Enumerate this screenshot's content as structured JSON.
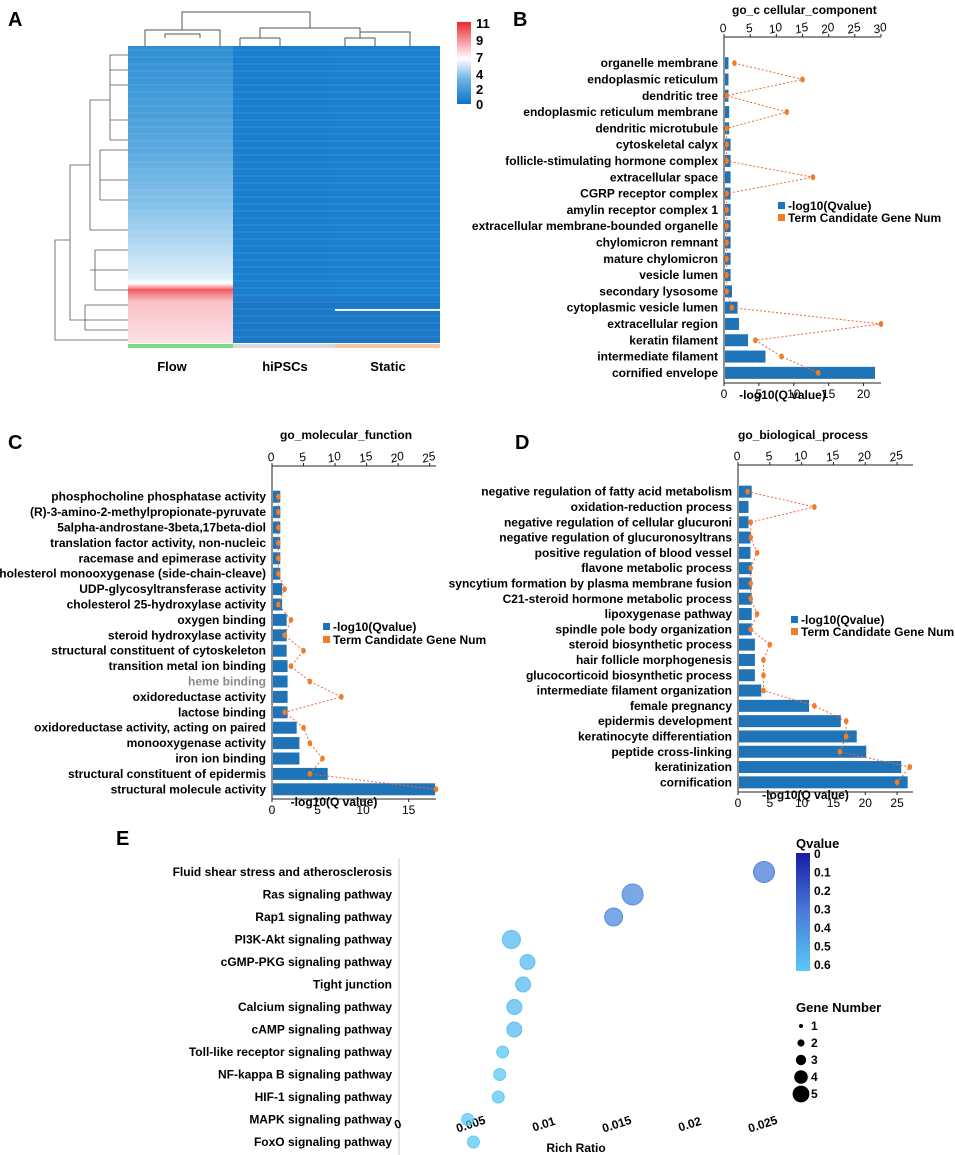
{
  "panels": {
    "a": {
      "label": "A",
      "groups": [
        "Flow",
        "hiPSCs",
        "Static"
      ],
      "group_colors": [
        "#7ad98a",
        "#d9d9d9",
        "#f5c7a3"
      ],
      "scale_ticks": [
        "11",
        "9",
        "7",
        "4",
        "2",
        "0"
      ]
    },
    "b": {
      "label": "B"
    },
    "c": {
      "label": "C"
    },
    "d": {
      "label": "D"
    },
    "e": {
      "label": "E"
    }
  },
  "colors": {
    "bar": "#1f73b7",
    "dot": "#f07d28",
    "line": "#f0643c"
  },
  "legend": {
    "bar_label": "-log10(Qvalue)",
    "dot_label": "Term Candidate Gene Num"
  },
  "chart_data": [
    {
      "id": "b",
      "type": "bar",
      "title": "go_c cellular_component",
      "xlabel": "-log10(Q value)",
      "bottom_ticks": [
        0,
        5,
        10,
        15,
        20
      ],
      "top_ticks": [
        0,
        5,
        10,
        15,
        20,
        25,
        30
      ],
      "bottom_max": 22.5,
      "top_max": 30,
      "categories": [
        "organelle membrane",
        "endoplasmic reticulum",
        "dendritic tree",
        "endoplasmic reticulum membrane",
        "dendritic microtubule",
        "cytoskeletal calyx",
        "follicle-stimulating hormone complex",
        "extracellular space",
        "CGRP receptor complex",
        "amylin receptor complex 1",
        "extracellular membrane-bounded organelle",
        "chylomicron remnant",
        "mature chylomicron",
        "vesicle lumen",
        "secondary lysosome",
        "cytoplasmic vesicle lumen",
        "extracellular region",
        "keratin filament",
        "intermediate filament",
        "cornified envelope"
      ],
      "values": [
        0.5,
        0.5,
        0.5,
        0.6,
        0.6,
        0.8,
        0.8,
        0.8,
        0.8,
        0.8,
        0.8,
        0.8,
        0.8,
        0.8,
        1.0,
        1.8,
        2.0,
        3.3,
        5.8,
        21.5
      ],
      "gene_num": [
        2,
        15,
        0.5,
        12,
        0.5,
        0.5,
        0.5,
        17,
        0.5,
        0.5,
        0.5,
        0.5,
        0.5,
        0.5,
        0.5,
        1.5,
        30,
        6,
        11,
        18
      ]
    },
    {
      "id": "c",
      "type": "bar",
      "title": "go_molecular_function",
      "xlabel": "-log10(Q value)",
      "bottom_ticks": [
        0,
        5,
        10,
        15
      ],
      "top_ticks": [
        0,
        5,
        10,
        15,
        20,
        25
      ],
      "bottom_max": 18,
      "top_max": 26,
      "categories": [
        "phosphocholine phosphatase activity",
        "(R)-3-amino-2-methylpropionate-pyruvate",
        "5alpha-androstane-3beta,17beta-diol",
        "translation factor activity, non-nucleic",
        "racemase and epimerase activity",
        "cholesterol monooxygenase (side-chain-cleave)",
        "UDP-glycosyltransferase activity",
        "cholesterol 25-hydroxylase activity",
        "oxygen binding",
        "steroid hydroxylase activity",
        "structural constituent of cytoskeleton",
        "transition metal ion binding",
        "heme binding",
        "oxidoreductase activity",
        "lactose binding",
        "oxidoreductase activity, acting on paired",
        "monooxygenase activity",
        "iron ion binding",
        "structural constituent of epidermis",
        "structural molecule activity"
      ],
      "values": [
        0.8,
        0.8,
        0.8,
        0.8,
        0.8,
        0.8,
        1.0,
        1.0,
        1.5,
        1.5,
        1.5,
        1.6,
        1.6,
        1.6,
        1.6,
        2.6,
        2.9,
        2.9,
        6.0,
        17.8
      ],
      "gene_num": [
        1,
        1,
        1,
        1,
        1,
        1,
        2,
        1,
        3,
        2,
        5,
        3,
        6,
        11,
        2,
        5,
        6,
        8,
        6,
        26
      ]
    },
    {
      "id": "d",
      "type": "bar",
      "title": "go_biological_process",
      "xlabel": "-log10(Q value)",
      "bottom_ticks": [
        0,
        5,
        10,
        15,
        20,
        25
      ],
      "top_ticks": [
        0,
        5,
        10,
        15,
        20,
        25
      ],
      "bottom_max": 27.5,
      "top_max": 27.5,
      "categories": [
        "negative regulation of fatty acid metabolism",
        "oxidation-reduction process",
        "negative regulation of cellular glucuroni",
        "negative regulation of glucuronosyltrans",
        "positive regulation of blood vessel",
        "flavone metabolic process",
        "syncytium formation by plasma membrane fusion",
        "C21-steroid hormone metabolic process",
        "lipoxygenase pathway",
        "spindle pole body organization",
        "steroid biosynthetic process",
        "hair follicle morphogenesis",
        "glucocorticoid biosynthetic process",
        "intermediate filament organization",
        "female pregnancy",
        "epidermis development",
        "keratinocyte differentiation",
        "peptide cross-linking",
        "keratinization",
        "cornification"
      ],
      "values": [
        2.0,
        1.5,
        1.5,
        1.8,
        1.8,
        2.0,
        2.0,
        2.0,
        2.0,
        2.0,
        2.5,
        2.5,
        2.5,
        3.5,
        11.0,
        16.0,
        18.5,
        20.0,
        25.5,
        26.5
      ],
      "gene_num": [
        1.5,
        12,
        2,
        2,
        3,
        2,
        2,
        2,
        3,
        2,
        5,
        4,
        4,
        4,
        12,
        17,
        17,
        16,
        27,
        25
      ]
    },
    {
      "id": "e",
      "type": "scatter",
      "xlabel": "Rich Ratio",
      "x_ticks": [
        "0",
        "0.005",
        "0.01",
        "0.015",
        "0.02",
        "0.025"
      ],
      "x_tick_values": [
        0,
        0.005,
        0.01,
        0.015,
        0.02,
        0.025
      ],
      "xlim": [
        0,
        0.025
      ],
      "categories": [
        "Fluid shear stress and atherosclerosis",
        "Ras signaling pathway",
        "Rap1 signaling pathway",
        "PI3K-Akt signaling pathway",
        "cGMP-PKG signaling pathway",
        "Tight junction",
        "Calcium signaling pathway",
        "cAMP signaling pathway",
        "Toll-like receptor signaling pathway",
        "NF-kappa B signaling pathway",
        "HIF-1 signaling pathway",
        "MAPK signaling pathway",
        "FoxO signaling pathway"
      ],
      "rich_ratio": [
        0.025,
        0.016,
        0.0147,
        0.0077,
        0.0088,
        0.0085,
        0.0079,
        0.0079,
        0.0071,
        0.0069,
        0.0068,
        0.0047,
        0.0051
      ],
      "qvalue": [
        0.3,
        0.35,
        0.35,
        0.55,
        0.55,
        0.55,
        0.55,
        0.55,
        0.6,
        0.6,
        0.6,
        0.6,
        0.6
      ],
      "gene_number": [
        5,
        5,
        4,
        4,
        3,
        3,
        3,
        3,
        2,
        2,
        2,
        2,
        2
      ],
      "qvalue_legend": {
        "title": "Qvalue",
        "ticks": [
          "0",
          "0.1",
          "0.2",
          "0.3",
          "0.4",
          "0.5",
          "0.6"
        ]
      },
      "size_legend": {
        "title": "Gene Number",
        "ticks": [
          "1",
          "2",
          "3",
          "4",
          "5"
        ]
      }
    }
  ]
}
